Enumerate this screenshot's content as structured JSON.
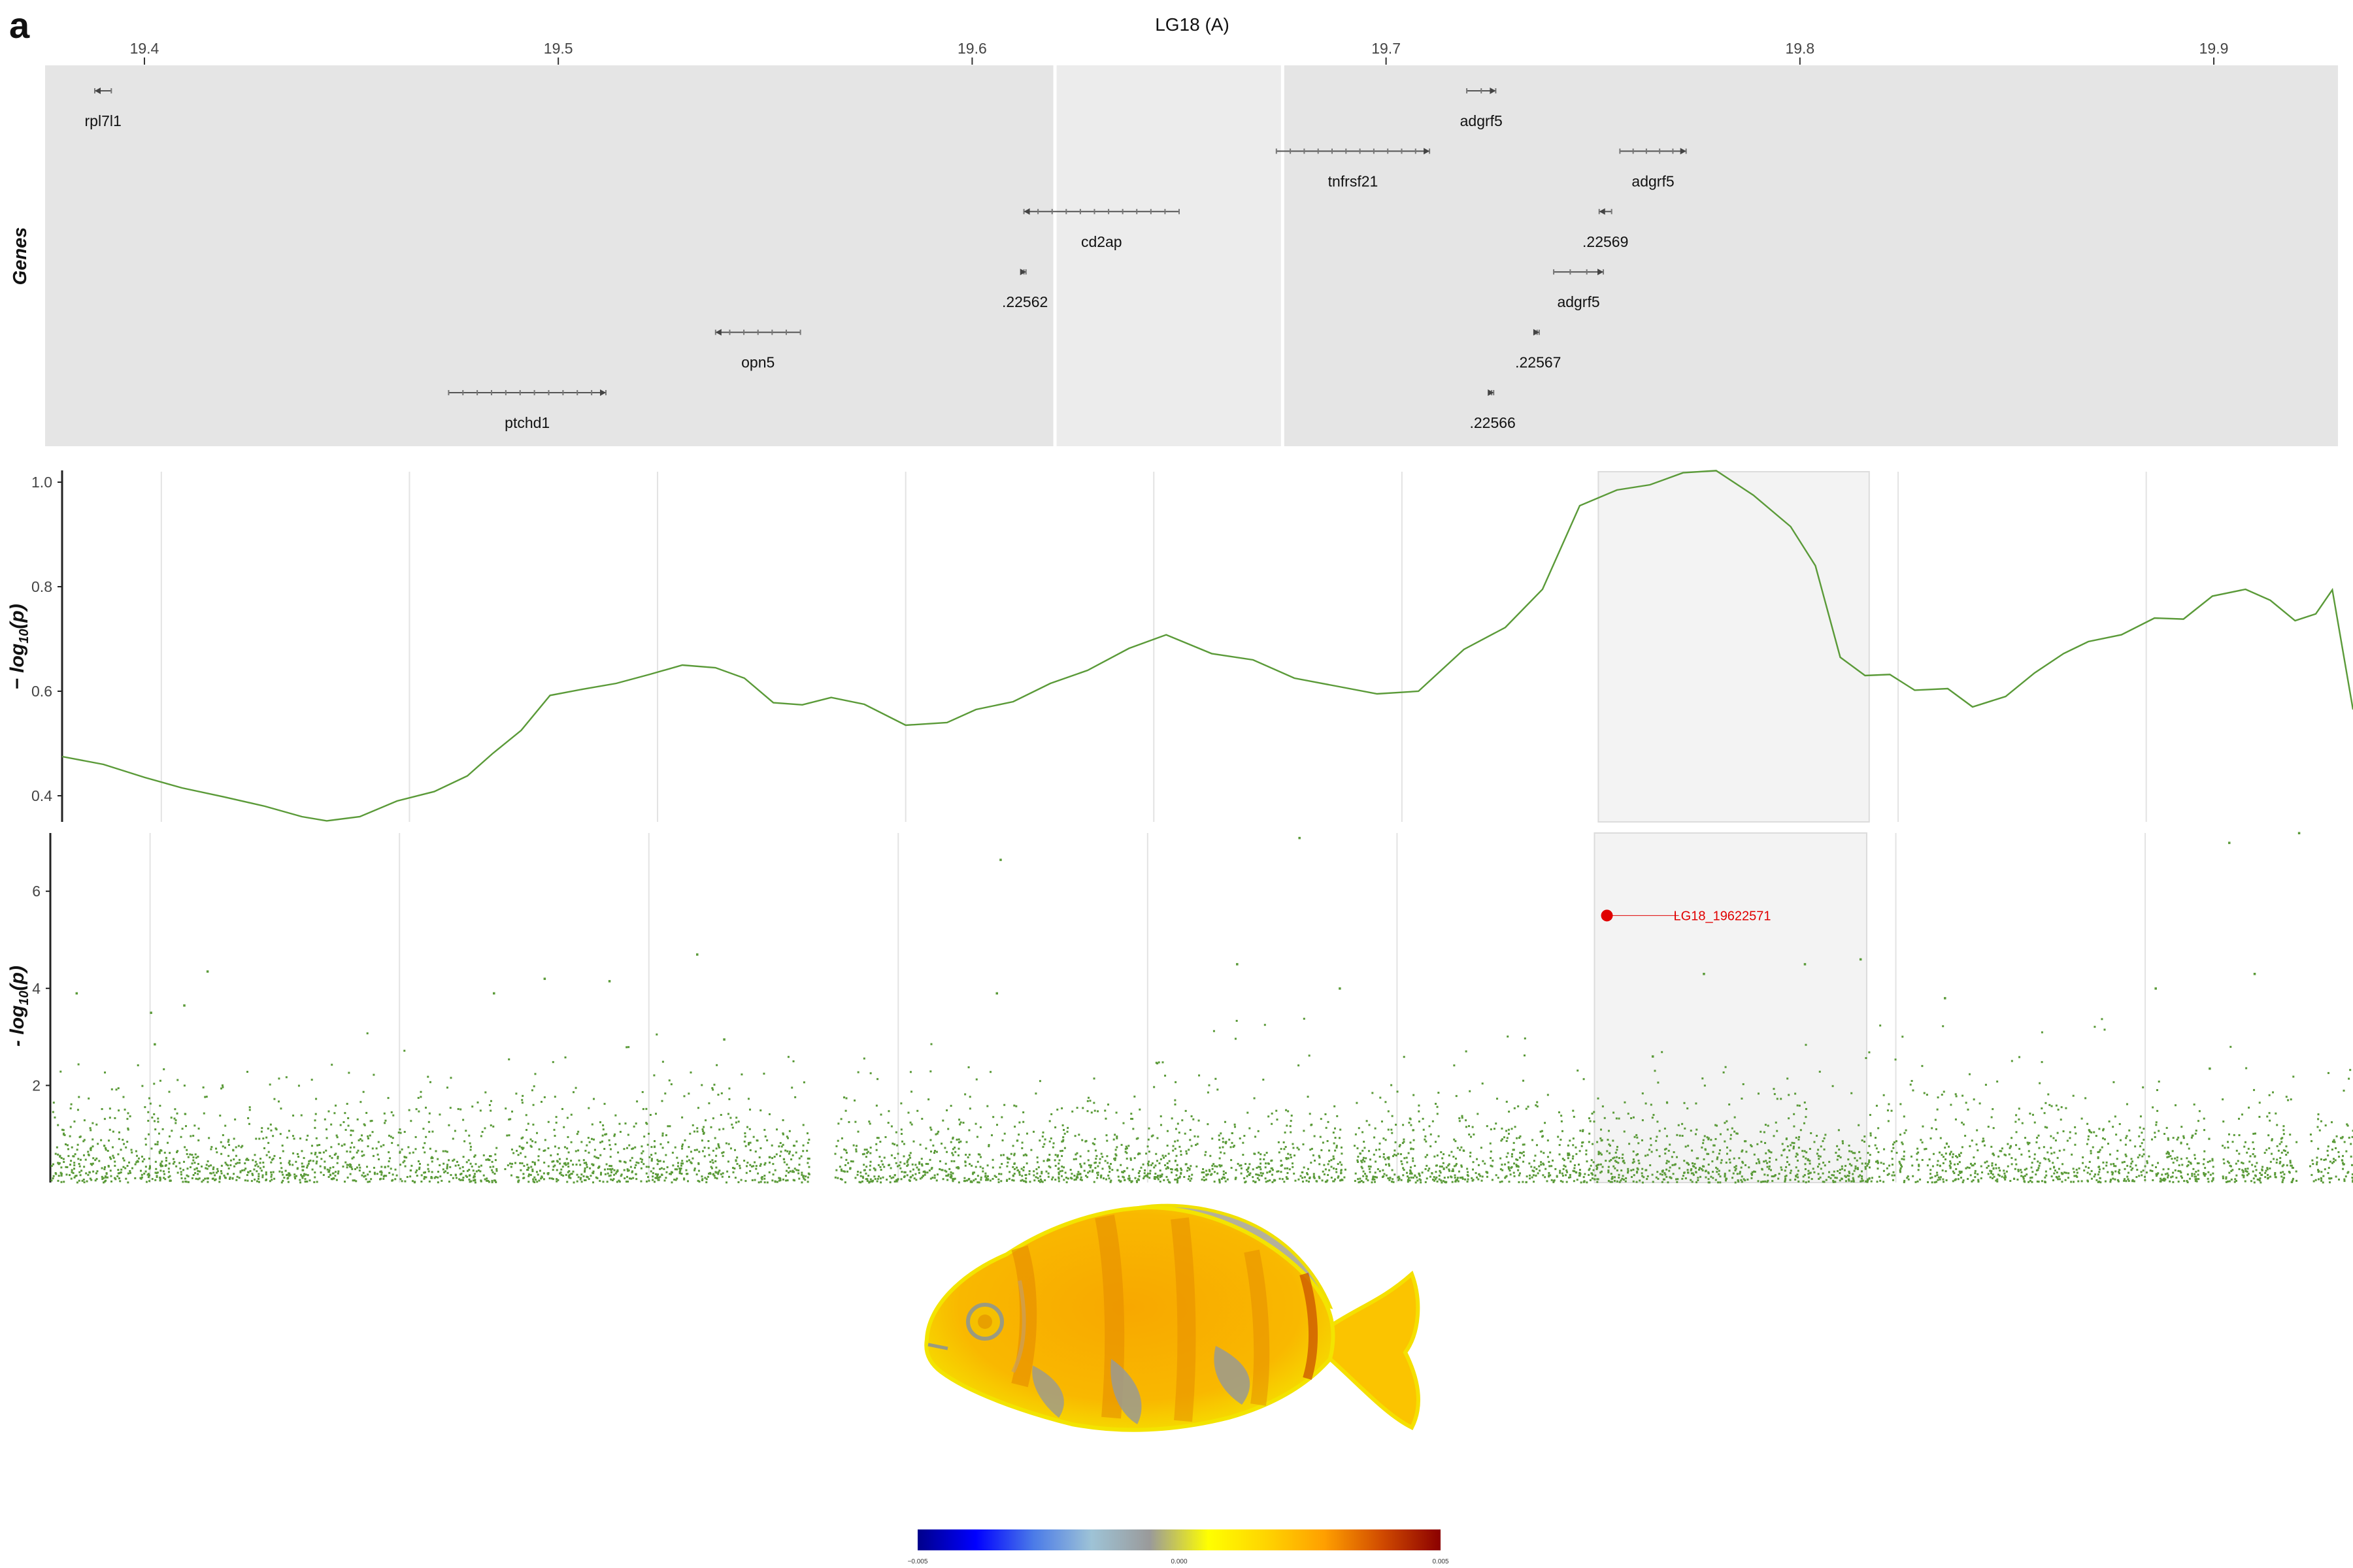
{
  "panel_label": "a",
  "chart_data": [
    {
      "type": "table",
      "title": "LG18 (A)",
      "ylabel": "Genes",
      "x_unit": "Mb",
      "xlim": [
        19.376,
        19.93
      ],
      "x_ticks": [
        "19.4",
        "19.5",
        "19.6",
        "19.7",
        "19.8",
        "19.9"
      ],
      "highlight_region": [
        19.62,
        19.675
      ],
      "track_background": "#e5e5e5",
      "highlight_background": "#ececec",
      "genes": [
        {
          "name": "rpl7l1",
          "start": 19.388,
          "end": 19.392,
          "row": 0,
          "strand": "-"
        },
        {
          "name": "adgrf5",
          "start": 19.7195,
          "end": 19.7265,
          "row": 0,
          "strand": "+"
        },
        {
          "name": "tnfrsf21",
          "start": 19.6735,
          "end": 19.7105,
          "row": 1,
          "strand": "+"
        },
        {
          "name": "adgrf5",
          "start": 19.7565,
          "end": 19.7725,
          "row": 1,
          "strand": "+"
        },
        {
          "name": "cd2ap",
          "start": 19.6125,
          "end": 19.65,
          "row": 2,
          "strand": "-"
        },
        {
          "name": ".22569",
          "start": 19.7515,
          "end": 19.7545,
          "row": 2,
          "strand": "-"
        },
        {
          "name": ".22562",
          "start": 19.6125,
          "end": 19.613,
          "row": 3,
          "strand": "+"
        },
        {
          "name": "adgrf5",
          "start": 19.7405,
          "end": 19.7525,
          "row": 3,
          "strand": "+"
        },
        {
          "name": "opn5",
          "start": 19.538,
          "end": 19.5585,
          "row": 4,
          "strand": "-"
        },
        {
          "name": ".22567",
          "start": 19.7365,
          "end": 19.737,
          "row": 4,
          "strand": "+"
        },
        {
          "name": "ptchd1",
          "start": 19.4735,
          "end": 19.5115,
          "row": 5,
          "strand": "+"
        },
        {
          "name": ".22566",
          "start": 19.7255,
          "end": 19.726,
          "row": 5,
          "strand": "+"
        }
      ]
    },
    {
      "type": "line",
      "ylabel": "-log10(p)",
      "ylim": [
        0.35,
        1.02
      ],
      "y_ticks": [
        0.4,
        0.6,
        0.8,
        1.0
      ],
      "xlim": [
        19.376,
        19.93
      ],
      "highlight_region": [
        19.7475,
        19.813
      ],
      "color": "#5a9a38",
      "x": [
        19.376,
        19.386,
        19.396,
        19.405,
        19.415,
        19.425,
        19.434,
        19.44,
        19.448,
        19.457,
        19.466,
        19.474,
        19.48,
        19.487,
        19.494,
        19.502,
        19.51,
        19.518,
        19.526,
        19.534,
        19.541,
        19.548,
        19.555,
        19.562,
        19.57,
        19.58,
        19.59,
        19.597,
        19.606,
        19.615,
        19.624,
        19.634,
        19.643,
        19.654,
        19.664,
        19.674,
        19.684,
        19.694,
        19.704,
        19.715,
        19.725,
        19.734,
        19.743,
        19.752,
        19.76,
        19.768,
        19.776,
        19.785,
        19.794,
        19.8,
        19.806,
        19.812,
        19.818,
        19.824,
        19.832,
        19.838,
        19.846,
        19.853,
        19.86,
        19.866,
        19.874,
        19.882,
        19.889,
        19.896,
        19.904,
        19.91,
        19.916,
        19.921,
        19.925,
        19.93
      ],
      "y": [
        0.475,
        0.46,
        0.435,
        0.415,
        0.398,
        0.38,
        0.36,
        0.352,
        0.36,
        0.39,
        0.408,
        0.438,
        0.48,
        0.525,
        0.592,
        0.604,
        0.615,
        0.632,
        0.65,
        0.645,
        0.625,
        0.578,
        0.574,
        0.588,
        0.575,
        0.535,
        0.54,
        0.565,
        0.58,
        0.615,
        0.64,
        0.682,
        0.708,
        0.672,
        0.66,
        0.625,
        0.61,
        0.595,
        0.6,
        0.68,
        0.722,
        0.795,
        0.955,
        0.985,
        0.995,
        1.018,
        1.022,
        0.975,
        0.915,
        0.84,
        0.665,
        0.63,
        0.632,
        0.602,
        0.605,
        0.57,
        0.59,
        0.635,
        0.672,
        0.695,
        0.708,
        0.74,
        0.738,
        0.782,
        0.795,
        0.774,
        0.735,
        0.748,
        0.794,
        0.565
      ]
    },
    {
      "type": "scatter",
      "ylabel": "-log10(p)",
      "ylim": [
        0,
        7.2
      ],
      "y_ticks": [
        2,
        4,
        6
      ],
      "xlim": [
        19.376,
        19.93
      ],
      "highlight_region": [
        19.7475,
        19.813
      ],
      "color": "#5a9a38",
      "highlighted_point": {
        "label": "LG18_19622571",
        "x": 19.7505,
        "y": 5.5,
        "color": "#e00000"
      },
      "point_count_note": "",
      "sample_points": [
        {
          "x": 19.4138,
          "y": 4.35
        },
        {
          "x": 19.6046,
          "y": 6.65
        },
        {
          "x": 19.6765,
          "y": 7.1
        },
        {
          "x": 19.9002,
          "y": 7.0
        },
        {
          "x": 19.917,
          "y": 7.2
        },
        {
          "x": 19.5316,
          "y": 4.7
        },
        {
          "x": 19.4082,
          "y": 3.65
        },
        {
          "x": 19.4002,
          "y": 3.5
        },
        {
          "x": 19.5105,
          "y": 4.15
        },
        {
          "x": 19.6615,
          "y": 4.5
        },
        {
          "x": 19.6862,
          "y": 4.0
        },
        {
          "x": 19.7738,
          "y": 4.3
        },
        {
          "x": 19.7981,
          "y": 4.5
        },
        {
          "x": 19.8115,
          "y": 4.6
        },
        {
          "x": 19.8825,
          "y": 4.0
        },
        {
          "x": 19.9063,
          "y": 4.3
        },
        {
          "x": 19.3823,
          "y": 3.9
        },
        {
          "x": 19.4827,
          "y": 3.9
        },
        {
          "x": 19.4949,
          "y": 4.2
        },
        {
          "x": 19.6037,
          "y": 3.9
        },
        {
          "x": 19.8318,
          "y": 3.8
        },
        {
          "x": 19.4011,
          "y": 2.85
        },
        {
          "x": 19.5381,
          "y": 2.95
        },
        {
          "x": 19.7615,
          "y": 2.6
        },
        {
          "x": 19.8955,
          "y": 2.35
        }
      ]
    },
    {
      "type": "heatmap",
      "colorbar": {
        "min_label": "−0.005",
        "mid_label": "0.000",
        "max_label": "0.005",
        "colors": [
          "#00008b",
          "#0000ff",
          "#4b7be8",
          "#9ec3d6",
          "#9a9a9a",
          "#ffff00",
          "#ffd400",
          "#ff9f00",
          "#d04a00",
          "#8b0000"
        ]
      },
      "fish_colors": {
        "base": "#f9b800",
        "light": "#fbd700",
        "edge": "#f5e400",
        "grey": "#9a9a90",
        "dark": "#d97a00"
      }
    }
  ]
}
